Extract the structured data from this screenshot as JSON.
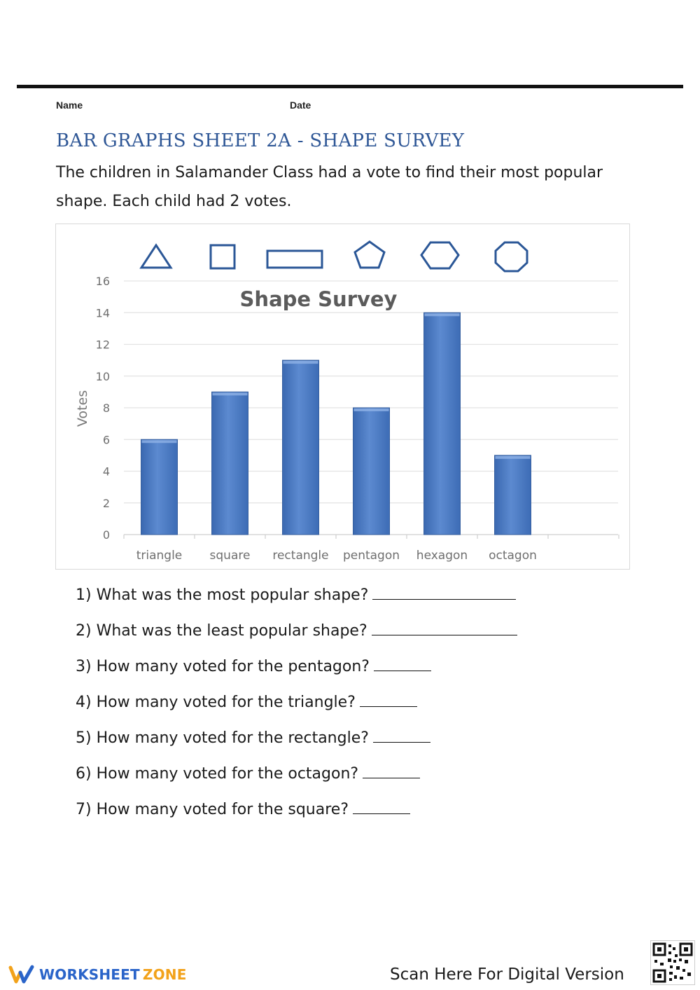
{
  "header": {
    "name_label": "Name",
    "date_label": "Date"
  },
  "sheet": {
    "title": "BAR GRAPHS SHEET 2A - SHAPE SURVEY",
    "intro": "The children in Salamander Class had a vote to find their most popular shape. Each child had 2 votes."
  },
  "shape_icons": [
    "triangle-icon",
    "square-icon",
    "rectangle-icon",
    "pentagon-icon",
    "hexagon-icon",
    "octagon-icon"
  ],
  "chart_data": {
    "type": "bar",
    "title": "Shape Survey",
    "xlabel": "",
    "ylabel": "Votes",
    "categories": [
      "triangle",
      "square",
      "rectangle",
      "pentagon",
      "hexagon",
      "octagon"
    ],
    "values": [
      6,
      9,
      11,
      8,
      14,
      5
    ],
    "ylim": [
      0,
      16
    ],
    "yticks": [
      0,
      2,
      4,
      6,
      8,
      10,
      12,
      14,
      16
    ],
    "grid": true,
    "bar_color": "#4a7cc4",
    "legend": null
  },
  "questions": [
    {
      "text": "1) What was the most popular shape?"
    },
    {
      "text": "2) What was the least popular shape?"
    },
    {
      "text": "3) How many voted for the pentagon?"
    },
    {
      "text": "4) How many voted for the triangle?"
    },
    {
      "text": "5) How many voted for the rectangle?"
    },
    {
      "text": "6) How many voted for the octagon?"
    },
    {
      "text": "7) How many voted for the square?"
    }
  ],
  "footer": {
    "brand_part1": "WORKSHEET",
    "brand_part2": "ZONE",
    "scan_text": "Scan Here For Digital Version"
  },
  "colors": {
    "title_blue": "#2f5796",
    "shape_outline": "#2b5797",
    "brand_blue": "#2a64c9",
    "brand_orange": "#f2a21a"
  }
}
